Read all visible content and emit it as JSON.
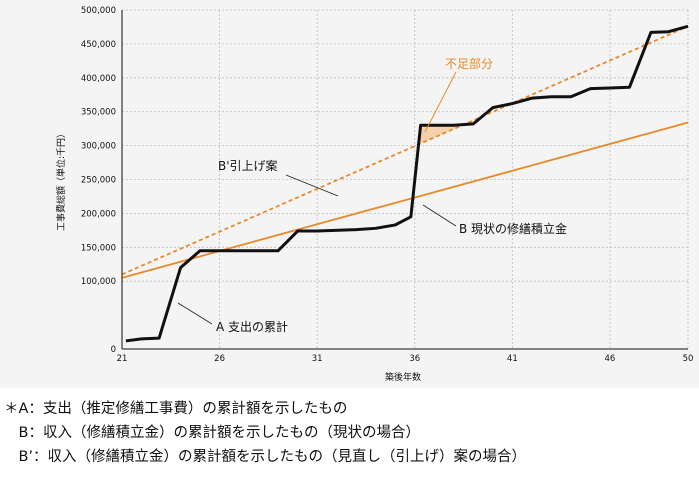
{
  "chart_data": {
    "type": "line",
    "xlabel": "築後年数",
    "ylabel": "工事費総額（単位:千円）",
    "xlim": [
      21,
      50
    ],
    "ylim": [
      0,
      500000
    ],
    "x_ticks": [
      "21",
      "26",
      "31",
      "36",
      "41",
      "46",
      "50"
    ],
    "y_ticks": [
      {
        "value": 0,
        "label": "0"
      },
      {
        "value": 100000,
        "label": "100,000"
      },
      {
        "value": 150000,
        "label": "150,000"
      },
      {
        "value": 200000,
        "label": "200,000"
      },
      {
        "value": 250000,
        "label": "250,000"
      },
      {
        "value": 300000,
        "label": "300,000"
      },
      {
        "value": 350000,
        "label": "350,000"
      },
      {
        "value": 400000,
        "label": "400,000"
      },
      {
        "value": 450000,
        "label": "450,000"
      },
      {
        "value": 500000,
        "label": "500,000"
      }
    ],
    "grid": true,
    "series": [
      {
        "name": "A 支出の累計",
        "color": "#111111",
        "style": "solid",
        "points": [
          [
            21.2,
            12000
          ],
          [
            22.0,
            15000
          ],
          [
            22.9,
            16000
          ],
          [
            24.0,
            120000
          ],
          [
            25.0,
            145000
          ],
          [
            28.0,
            145000
          ],
          [
            29.0,
            145000
          ],
          [
            30.0,
            174000
          ],
          [
            31.0,
            174000
          ],
          [
            33.0,
            176000
          ],
          [
            34.0,
            178000
          ],
          [
            35.0,
            183000
          ],
          [
            35.8,
            195000
          ],
          [
            36.3,
            330000
          ],
          [
            38.0,
            330000
          ],
          [
            39.0,
            332000
          ],
          [
            40.0,
            356000
          ],
          [
            41.0,
            362000
          ],
          [
            42.0,
            370000
          ],
          [
            43.0,
            372000
          ],
          [
            44.0,
            372000
          ],
          [
            45.0,
            384000
          ],
          [
            46.0,
            385000
          ],
          [
            47.0,
            386000
          ],
          [
            48.1,
            467000
          ],
          [
            49.0,
            468000
          ],
          [
            50.0,
            476000
          ]
        ]
      },
      {
        "name": "B 現状の修繕積立金",
        "color": "#e8892a",
        "style": "solid",
        "points": [
          [
            21.0,
            105000
          ],
          [
            50.0,
            334000
          ]
        ]
      },
      {
        "name": "B'引上げ案",
        "color": "#e8892a",
        "style": "dashed",
        "points": [
          [
            21.0,
            110000
          ],
          [
            50.0,
            476000
          ]
        ]
      }
    ],
    "annotations": {
      "shortfall": "不足部分",
      "label_a": "A 支出の累計",
      "label_b": "B 現状の修繕積立金",
      "label_b_prime": "B'引上げ案"
    }
  },
  "notes": {
    "line1": "＊A：支出（推定修繕工事費）の累計額を示したもの",
    "line2": "　B：収入（修繕積立金）の累計額を示したもの（現状の場合）",
    "line3": "　B’：収入（修繕積立金）の累計額を示したもの（見直し（引上げ）案の場合）"
  }
}
